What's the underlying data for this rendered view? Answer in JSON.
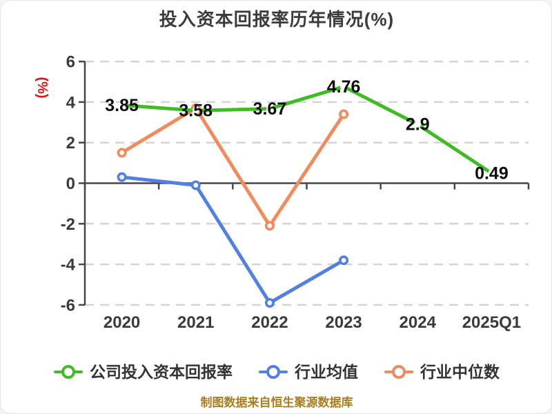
{
  "title": "投入资本回报率历年情况(%)",
  "y_axis_label": "(%)",
  "footer": "制图数据来自恒生聚源数据库",
  "colors": {
    "title_text": "#3b3b3b",
    "y_axis_label": "#e61010",
    "footer": "#a87e20",
    "axis_line": "#464646",
    "grid_line": "#d4d4d4",
    "tick_text": "#3a3a3a",
    "data_label": "#0c0c0c",
    "legend_text": "#333333",
    "company_roic": "#3fbb24",
    "industry_avg": "#5180e2",
    "industry_median": "#f08b5d"
  },
  "chart_data": {
    "type": "line",
    "title": "投入资本回报率历年情况(%)",
    "xlabel": "",
    "ylabel": "(%)",
    "categories": [
      "2020",
      "2021",
      "2022",
      "2023",
      "2024",
      "2025Q1"
    ],
    "series": [
      {
        "id": "company-roic",
        "name": "公司投入资本回报率",
        "color": "#3fbb24",
        "values": [
          3.85,
          3.58,
          3.67,
          4.76,
          2.9,
          0.49
        ],
        "labeled": true,
        "marker": "white-dot"
      },
      {
        "id": "industry-avg",
        "name": "行业均值",
        "color": "#5180e2",
        "values": [
          0.3,
          -0.1,
          -5.9,
          -3.8,
          null,
          null
        ],
        "labeled": false,
        "marker": "ring"
      },
      {
        "id": "industry-median",
        "name": "行业中位数",
        "color": "#f08b5d",
        "values": [
          1.5,
          3.7,
          -2.1,
          3.4,
          null,
          null
        ],
        "labeled": false,
        "marker": "ring"
      }
    ],
    "ylim": [
      -6,
      6
    ],
    "yticks": [
      6,
      4,
      2,
      0,
      -2,
      -4,
      -6
    ],
    "ytick_labels": [
      "6",
      "4",
      "2",
      "0",
      "-2",
      "-4",
      "-6"
    ],
    "grid": "horizontal-dashed",
    "zero_line": "solid",
    "legend_position": "bottom"
  }
}
